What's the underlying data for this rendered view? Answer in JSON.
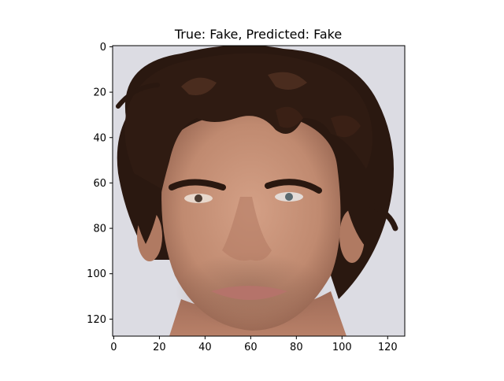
{
  "chart_data": {
    "type": "image",
    "title": "True: Fake, Predicted: Fake",
    "xlim": [
      -0.5,
      127.5
    ],
    "ylim": [
      127.5,
      -0.5
    ],
    "y_inverted": true,
    "xticks": [
      0,
      20,
      40,
      60,
      80,
      100,
      120
    ],
    "yticks": [
      0,
      20,
      40,
      60,
      80,
      100,
      120
    ],
    "xlabel": "",
    "ylabel": "",
    "image_subject": "face-portrait-icon"
  },
  "colors": {
    "background": "#ffffff",
    "axis": "#000000",
    "backdrop": "#dcdce2",
    "skin": "#c99379",
    "skin_shadow": "#a8735d",
    "hair": "#2a1810",
    "hair_highlight": "#4a2c1e",
    "lips": "#b5736a",
    "eye": "#5b6a70"
  }
}
